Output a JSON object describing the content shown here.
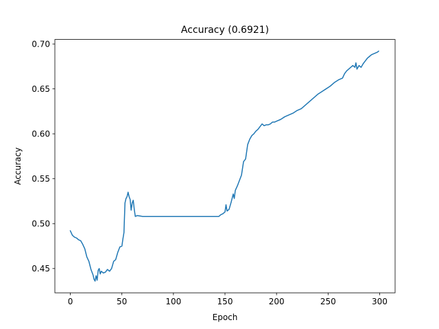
{
  "chart_data": {
    "type": "line",
    "title": "Accuracy (0.6921)",
    "xlabel": "Epoch",
    "ylabel": "Accuracy",
    "xlim": [
      -15,
      315
    ],
    "ylim": [
      0.423,
      0.705
    ],
    "xticks": [
      0,
      50,
      100,
      150,
      200,
      250,
      300
    ],
    "xtick_labels": [
      "0",
      "50",
      "100",
      "150",
      "200",
      "250",
      "300"
    ],
    "yticks": [
      0.45,
      0.5,
      0.55,
      0.6,
      0.65,
      0.7
    ],
    "ytick_labels": [
      "0.45",
      "0.50",
      "0.55",
      "0.60",
      "0.65",
      "0.70"
    ],
    "grid": false,
    "series": [
      {
        "color": "#1f77b4",
        "points": [
          [
            0,
            0.492
          ],
          [
            2,
            0.487
          ],
          [
            4,
            0.485
          ],
          [
            6,
            0.484
          ],
          [
            8,
            0.482
          ],
          [
            10,
            0.481
          ],
          [
            12,
            0.477
          ],
          [
            14,
            0.472
          ],
          [
            16,
            0.463
          ],
          [
            18,
            0.458
          ],
          [
            20,
            0.449
          ],
          [
            22,
            0.443
          ],
          [
            23,
            0.438
          ],
          [
            24,
            0.436
          ],
          [
            25,
            0.442
          ],
          [
            26,
            0.437
          ],
          [
            27,
            0.448
          ],
          [
            28,
            0.45
          ],
          [
            29,
            0.444
          ],
          [
            30,
            0.447
          ],
          [
            32,
            0.445
          ],
          [
            34,
            0.446
          ],
          [
            36,
            0.449
          ],
          [
            38,
            0.447
          ],
          [
            40,
            0.45
          ],
          [
            42,
            0.458
          ],
          [
            44,
            0.46
          ],
          [
            46,
            0.468
          ],
          [
            48,
            0.474
          ],
          [
            50,
            0.475
          ],
          [
            51,
            0.483
          ],
          [
            52,
            0.49
          ],
          [
            53,
            0.523
          ],
          [
            54,
            0.528
          ],
          [
            55,
            0.53
          ],
          [
            56,
            0.535
          ],
          [
            57,
            0.53
          ],
          [
            58,
            0.527
          ],
          [
            59,
            0.515
          ],
          [
            60,
            0.523
          ],
          [
            61,
            0.526
          ],
          [
            62,
            0.516
          ],
          [
            63,
            0.508
          ],
          [
            65,
            0.509
          ],
          [
            70,
            0.508
          ],
          [
            100,
            0.508
          ],
          [
            130,
            0.508
          ],
          [
            144,
            0.508
          ],
          [
            146,
            0.51
          ],
          [
            148,
            0.511
          ],
          [
            150,
            0.513
          ],
          [
            151,
            0.521
          ],
          [
            152,
            0.514
          ],
          [
            154,
            0.516
          ],
          [
            156,
            0.524
          ],
          [
            158,
            0.533
          ],
          [
            159,
            0.528
          ],
          [
            160,
            0.537
          ],
          [
            162,
            0.542
          ],
          [
            164,
            0.548
          ],
          [
            166,
            0.554
          ],
          [
            168,
            0.569
          ],
          [
            170,
            0.572
          ],
          [
            172,
            0.588
          ],
          [
            174,
            0.594
          ],
          [
            176,
            0.598
          ],
          [
            178,
            0.6
          ],
          [
            180,
            0.603
          ],
          [
            182,
            0.605
          ],
          [
            184,
            0.608
          ],
          [
            186,
            0.611
          ],
          [
            188,
            0.609
          ],
          [
            190,
            0.61
          ],
          [
            192,
            0.61
          ],
          [
            194,
            0.611
          ],
          [
            196,
            0.613
          ],
          [
            198,
            0.613
          ],
          [
            200,
            0.614
          ],
          [
            204,
            0.616
          ],
          [
            208,
            0.619
          ],
          [
            212,
            0.621
          ],
          [
            216,
            0.623
          ],
          [
            220,
            0.626
          ],
          [
            224,
            0.628
          ],
          [
            228,
            0.632
          ],
          [
            232,
            0.636
          ],
          [
            236,
            0.64
          ],
          [
            240,
            0.644
          ],
          [
            244,
            0.647
          ],
          [
            248,
            0.65
          ],
          [
            252,
            0.653
          ],
          [
            256,
            0.657
          ],
          [
            260,
            0.66
          ],
          [
            264,
            0.662
          ],
          [
            266,
            0.667
          ],
          [
            268,
            0.67
          ],
          [
            270,
            0.672
          ],
          [
            272,
            0.674
          ],
          [
            274,
            0.676
          ],
          [
            276,
            0.674
          ],
          [
            277,
            0.679
          ],
          [
            278,
            0.672
          ],
          [
            280,
            0.676
          ],
          [
            282,
            0.674
          ],
          [
            284,
            0.678
          ],
          [
            286,
            0.681
          ],
          [
            288,
            0.684
          ],
          [
            290,
            0.686
          ],
          [
            292,
            0.688
          ],
          [
            294,
            0.689
          ],
          [
            296,
            0.69
          ],
          [
            298,
            0.691
          ],
          [
            299,
            0.692
          ]
        ]
      }
    ]
  }
}
